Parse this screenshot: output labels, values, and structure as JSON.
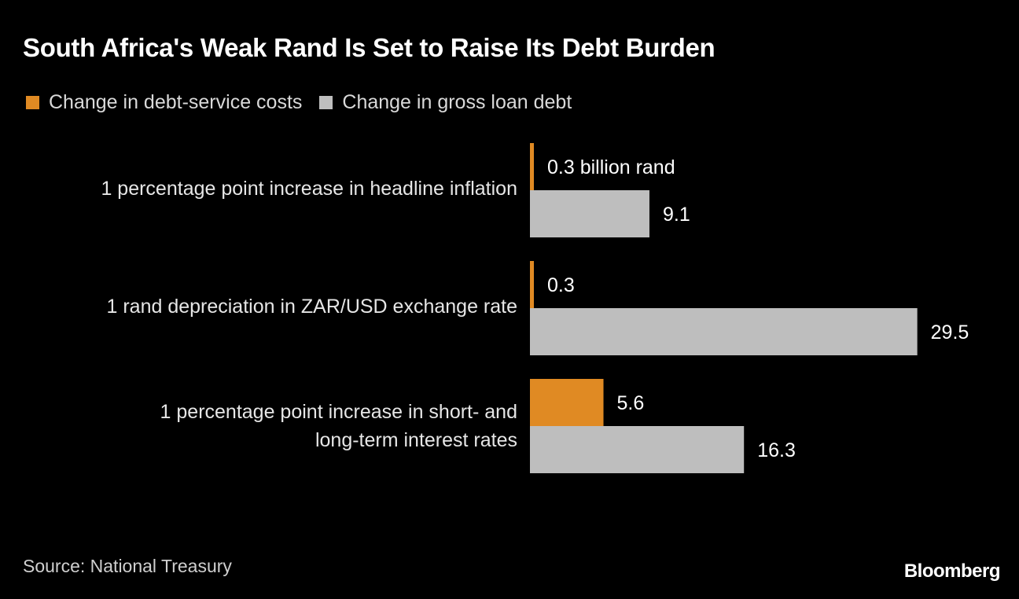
{
  "title": "South Africa's Weak Rand Is Set to Raise Its Debt Burden",
  "legend": [
    {
      "label": "Change in debt-service costs",
      "color": "#e08a23"
    },
    {
      "label": "Change in gross loan debt",
      "color": "#bebebe"
    }
  ],
  "source": "Source: National Treasury",
  "logo": "Bloomberg",
  "chart_data": {
    "type": "bar",
    "orientation": "horizontal",
    "title": "South Africa's Weak Rand Is Set to Raise Its Debt Burden",
    "unit": "billion rand",
    "categories": [
      [
        "1 percentage point increase in headline inflation"
      ],
      [
        "1 rand depreciation in ZAR/USD exchange rate"
      ],
      [
        "1 percentage point increase in short- and",
        "long-term interest rates"
      ]
    ],
    "series": [
      {
        "name": "Change in debt-service costs",
        "color": "#e08a23",
        "values": [
          0.3,
          0.3,
          5.6
        ],
        "labels": [
          "0.3 billion rand",
          "0.3",
          "5.6"
        ]
      },
      {
        "name": "Change in gross loan debt",
        "color": "#bebebe",
        "values": [
          9.1,
          29.5,
          16.3
        ],
        "labels": [
          "9.1",
          "29.5",
          "16.3"
        ]
      }
    ],
    "xlim": [
      0,
      29.5
    ],
    "grid": false,
    "legend_position": "top-left"
  }
}
